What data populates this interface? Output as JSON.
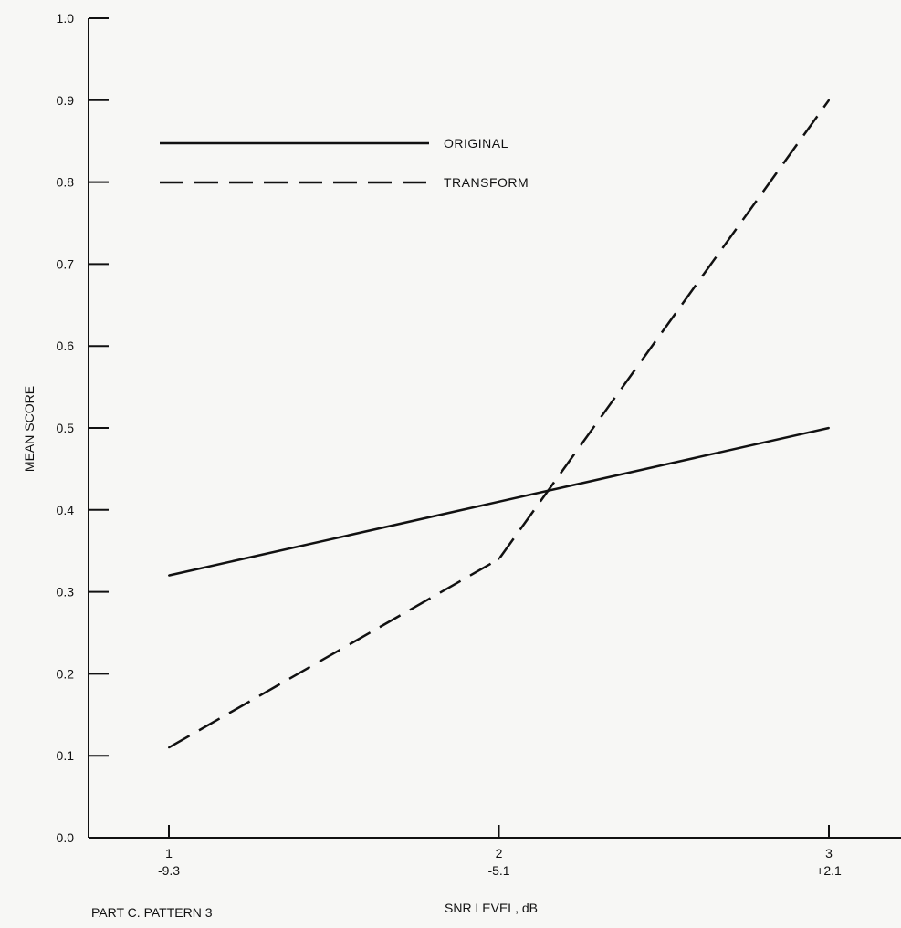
{
  "chart_data": {
    "type": "line",
    "title": "",
    "xlabel": "SNR LEVEL, dB",
    "ylabel": "MEAN SCORE",
    "x_ticks": [
      {
        "value": 1,
        "label": "1",
        "sublabel": "-9.3"
      },
      {
        "value": 2,
        "label": "2",
        "sublabel": "-5.1"
      },
      {
        "value": 3,
        "label": "3",
        "sublabel": "+2.1"
      }
    ],
    "y_ticks": [
      "0.0",
      "0.1",
      "0.2",
      "0.3",
      "0.4",
      "0.5",
      "0.6",
      "0.7",
      "0.8",
      "0.9",
      "1.0"
    ],
    "xlim": [
      1,
      3
    ],
    "ylim": [
      0.0,
      1.0
    ],
    "grid": false,
    "legend_position": "top-left",
    "series": [
      {
        "name": "ORIGINAL",
        "style": "solid",
        "x": [
          1,
          2,
          3
        ],
        "y": [
          0.32,
          0.41,
          0.5
        ]
      },
      {
        "name": "TRANSFORM",
        "style": "dashed",
        "x": [
          1,
          2,
          3
        ],
        "y": [
          0.11,
          0.34,
          0.9
        ]
      }
    ],
    "caption": "PART C. PATTERN 3",
    "colors": {
      "ink": "#111111",
      "paper": "#f7f7f5"
    }
  }
}
